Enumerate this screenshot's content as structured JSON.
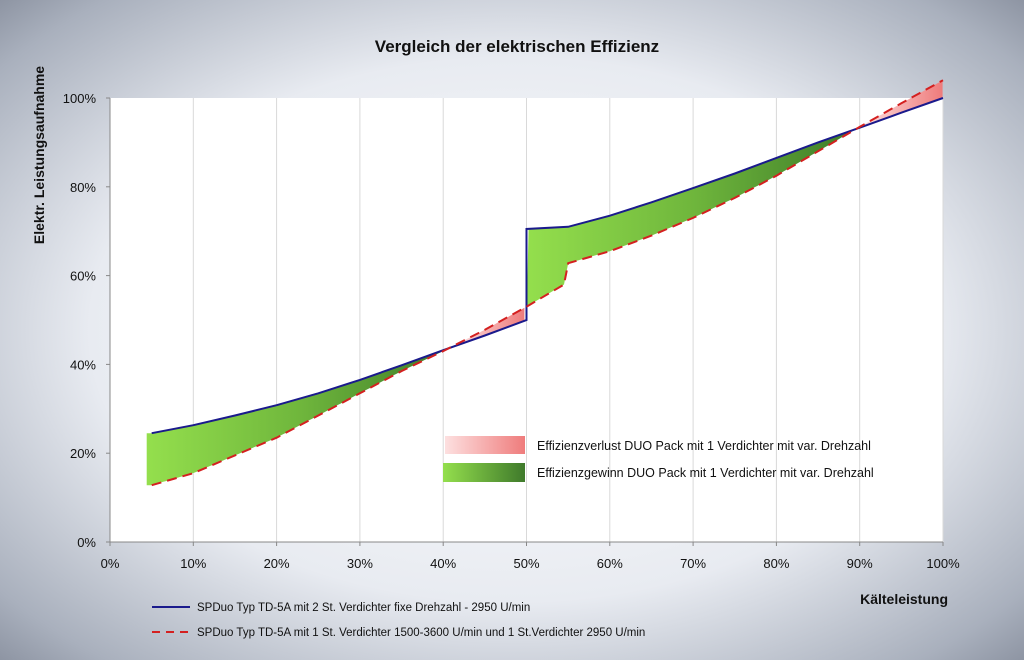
{
  "chart_data": {
    "type": "line",
    "title": "Vergleich der elektrischen Effizienz",
    "xlabel": "Kälteleistung",
    "ylabel": "Elektr. Leistungsaufnahme",
    "xlim": [
      0,
      100
    ],
    "ylim": [
      0,
      100
    ],
    "x_ticks": [
      "0%",
      "10%",
      "20%",
      "30%",
      "40%",
      "50%",
      "60%",
      "70%",
      "80%",
      "90%",
      "100%"
    ],
    "y_ticks": [
      "0%",
      "20%",
      "40%",
      "60%",
      "80%",
      "100%"
    ],
    "grid": "vertical",
    "series": [
      {
        "name": "SPDuo Typ  TD-5A mit 2 St. Verdichter fixe Drehzahl - 2950 U/min",
        "style": "solid",
        "color": "#1a1a8c",
        "x": [
          5,
          10,
          15,
          20,
          25,
          30,
          35,
          40,
          45,
          50,
          50,
          55,
          60,
          65,
          70,
          75,
          80,
          85,
          90,
          95,
          100
        ],
        "y": [
          24.5,
          26.3,
          28.5,
          30.8,
          33.5,
          36.5,
          39.8,
          43.2,
          46.5,
          50.0,
          70.5,
          71.0,
          73.5,
          76.5,
          79.7,
          83.0,
          86.5,
          90.0,
          93.3,
          96.7,
          100.0
        ]
      },
      {
        "name": "SPDuo Typ  TD-5A mit 1 St. Verdichter 1500-3600 U/min und 1 St.Verdichter 2950 U/min",
        "style": "dashed",
        "color": "#d42020",
        "x": [
          5,
          10,
          15,
          20,
          25,
          30,
          35,
          40,
          45,
          50,
          54.5,
          55,
          60,
          65,
          70,
          75,
          80,
          85,
          90,
          95,
          100
        ],
        "y": [
          12.8,
          15.5,
          19.5,
          23.5,
          28.5,
          33.5,
          38.5,
          43.0,
          47.8,
          53.0,
          58.0,
          62.8,
          65.5,
          69.0,
          73.0,
          77.5,
          82.5,
          88.0,
          93.5,
          98.8,
          104.0
        ]
      }
    ],
    "area_legend": [
      {
        "label": "Effizienzverlust DUO Pack mit 1 Verdichter mit var. Drehzahl",
        "color_from": "#fbd6d6",
        "color_to": "#ee7d7d"
      },
      {
        "label": "Effizienzgewinn DUO Pack mit 1 Verdichter mit var. Drehzahl",
        "color_from": "#92dc4e",
        "color_to": "#3f7d2a"
      }
    ]
  }
}
